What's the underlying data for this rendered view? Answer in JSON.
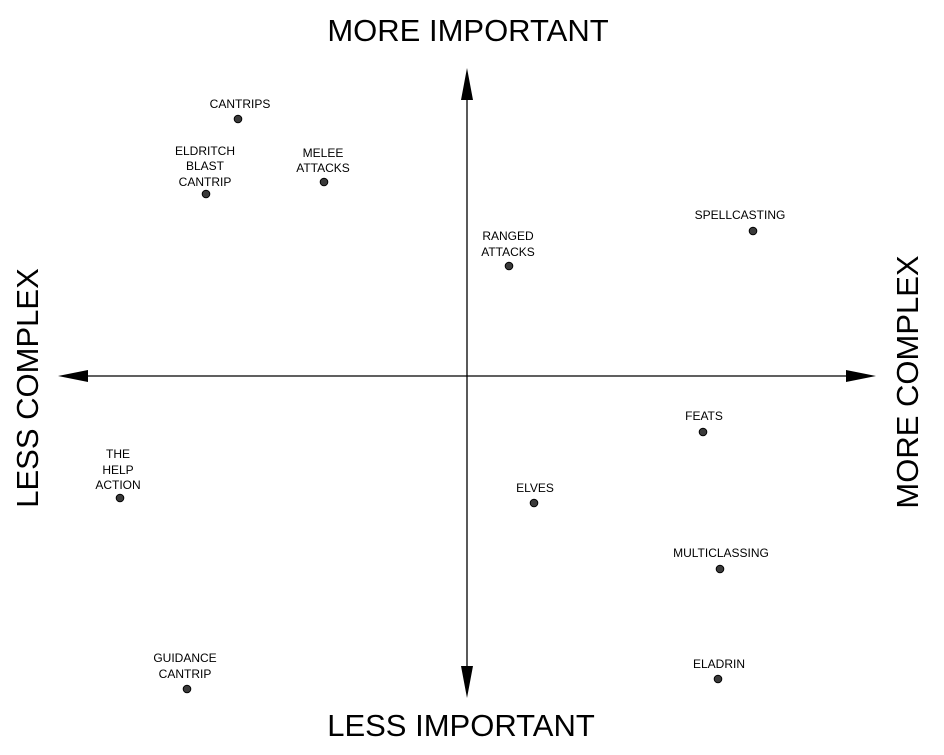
{
  "axes": {
    "top": "MORE IMPORTANT",
    "bottom": "LESS IMPORTANT",
    "left": "LESS COMPLEX",
    "right": "MORE COMPLEX"
  },
  "points": [
    {
      "id": "cantrips",
      "label": [
        "CANTRIPS"
      ]
    },
    {
      "id": "eldritch-blast-cantrip",
      "label": [
        "ELDRITCH",
        "BLAST",
        "CANTRIP"
      ]
    },
    {
      "id": "melee-attacks",
      "label": [
        "MELEE",
        "ATTACKS"
      ]
    },
    {
      "id": "ranged-attacks",
      "label": [
        "RANGED",
        "ATTACKS"
      ]
    },
    {
      "id": "spellcasting",
      "label": [
        "SPELLCASTING"
      ]
    },
    {
      "id": "the-help-action",
      "label": [
        "THE",
        "HELP",
        "ACTION"
      ]
    },
    {
      "id": "feats",
      "label": [
        "FEATS"
      ]
    },
    {
      "id": "elves",
      "label": [
        "ELVES"
      ]
    },
    {
      "id": "multiclassing",
      "label": [
        "MULTICLASSING"
      ]
    },
    {
      "id": "guidance-cantrip",
      "label": [
        "GUIDANCE",
        "CANTRIP"
      ]
    },
    {
      "id": "eladrin",
      "label": [
        "ELADRIN"
      ]
    }
  ]
}
